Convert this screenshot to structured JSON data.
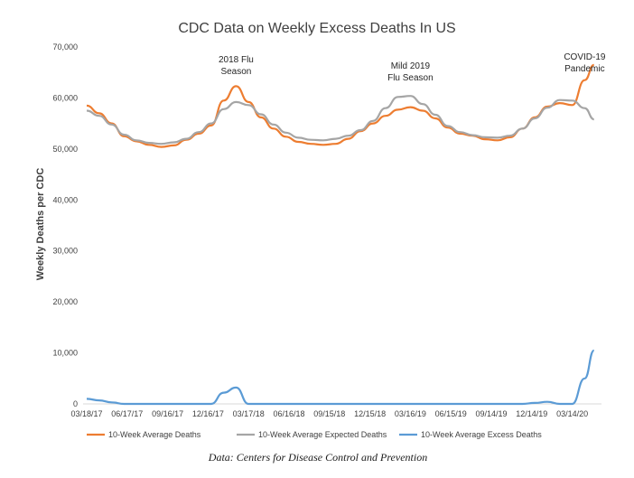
{
  "chart_data": {
    "type": "line",
    "title": "CDC Data on Weekly Excess Deaths In US",
    "ylabel": "Weekly Deaths per CDC",
    "xlabel": "",
    "ylim": [
      0,
      70000
    ],
    "yticks": [
      0,
      10000,
      20000,
      30000,
      40000,
      50000,
      60000,
      70000
    ],
    "ytick_labels": [
      "0",
      "10,000",
      "20,000",
      "30,000",
      "40,000",
      "50,000",
      "60,000",
      "70,000"
    ],
    "xtick_labels": [
      "03/18/17",
      "06/17/17",
      "09/16/17",
      "12/16/17",
      "03/17/18",
      "06/16/18",
      "09/15/18",
      "12/15/18",
      "03/16/19",
      "06/15/19",
      "09/14/19",
      "12/14/19",
      "03/14/20"
    ],
    "grid": false,
    "legend_position": "bottom",
    "x": [
      "03/18/17",
      "04/15/17",
      "05/13/17",
      "06/10/17",
      "07/08/17",
      "08/05/17",
      "09/02/17",
      "09/30/17",
      "10/28/17",
      "11/25/17",
      "12/23/17",
      "01/20/18",
      "02/17/18",
      "03/17/18",
      "04/14/18",
      "05/12/18",
      "06/09/18",
      "07/07/18",
      "08/04/18",
      "09/01/18",
      "09/29/18",
      "10/27/18",
      "11/24/18",
      "12/22/18",
      "01/19/19",
      "02/16/19",
      "03/16/19",
      "04/13/19",
      "05/11/19",
      "06/08/19",
      "07/06/19",
      "08/03/19",
      "08/31/19",
      "09/28/19",
      "10/26/19",
      "11/23/19",
      "12/21/19",
      "01/18/20",
      "02/15/20",
      "03/14/20",
      "04/11/20",
      "05/02/20"
    ],
    "series": [
      {
        "name": "10-Week Average Deaths",
        "color": "#ED7D31",
        "values": [
          58500,
          57000,
          55000,
          52500,
          51500,
          50800,
          50400,
          50700,
          51800,
          53000,
          54600,
          59500,
          62300,
          59200,
          56200,
          54000,
          52400,
          51400,
          51000,
          50800,
          51000,
          52000,
          53500,
          55000,
          56500,
          57700,
          58200,
          57500,
          56000,
          54200,
          53000,
          52600,
          51900,
          51700,
          52300,
          54000,
          56200,
          58300,
          59000,
          58600,
          63500,
          66500
        ]
      },
      {
        "name": "10-Week Average Expected Deaths",
        "color": "#A5A5A5",
        "values": [
          57500,
          56500,
          54800,
          52800,
          51700,
          51200,
          51000,
          51300,
          52000,
          53300,
          55000,
          57800,
          59200,
          58600,
          56800,
          54800,
          53200,
          52200,
          51800,
          51700,
          52000,
          52600,
          53700,
          55500,
          58000,
          60200,
          60400,
          58800,
          56700,
          54500,
          53300,
          52700,
          52300,
          52200,
          52600,
          54000,
          56000,
          58100,
          59600,
          59500,
          58000,
          55800
        ]
      },
      {
        "name": "10-Week Average Excess Deaths",
        "color": "#5B9BD5",
        "values": [
          1000,
          700,
          300,
          0,
          0,
          0,
          0,
          0,
          0,
          0,
          0,
          2200,
          3200,
          0,
          0,
          0,
          0,
          0,
          0,
          0,
          0,
          0,
          0,
          0,
          0,
          0,
          0,
          0,
          0,
          0,
          0,
          0,
          0,
          0,
          0,
          0,
          200,
          400,
          0,
          0,
          5000,
          10500
        ]
      }
    ],
    "annotations": [
      {
        "text_lines": [
          "2018 Flu",
          "Season"
        ],
        "anchor_x": "02/17/18"
      },
      {
        "text_lines": [
          "Mild 2019",
          "Flu Season"
        ],
        "anchor_x": "03/16/19"
      },
      {
        "text_lines": [
          "COVID-19",
          "Pandemic"
        ],
        "anchor_x": "04/11/20"
      }
    ]
  },
  "source_note": "Data: Centers for Disease Control and Prevention"
}
